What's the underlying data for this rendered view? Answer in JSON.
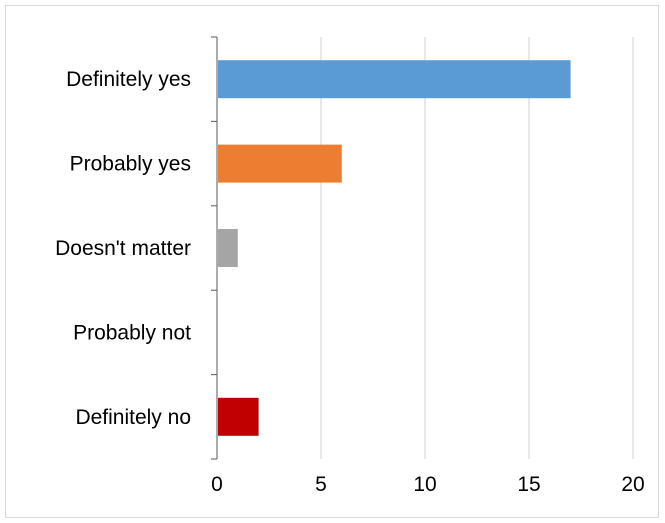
{
  "chart_data": {
    "type": "bar",
    "orientation": "horizontal",
    "title": "",
    "xlabel": "",
    "ylabel": "",
    "categories": [
      "Definitely yes",
      "Probably yes",
      "Doesn't matter",
      "Probably not",
      "Definitely no"
    ],
    "values": [
      17,
      6,
      1,
      0,
      2
    ],
    "colors": [
      "#5b9bd5",
      "#ed7d31",
      "#a5a5a5",
      "#ffc000",
      "#c00000"
    ],
    "xlim": [
      0,
      20
    ],
    "xticks": [
      0,
      5,
      10,
      15,
      20
    ],
    "xtick_labels": [
      "0",
      "5",
      "10",
      "15",
      "20"
    ],
    "grid": "vertical",
    "legend": "none"
  }
}
